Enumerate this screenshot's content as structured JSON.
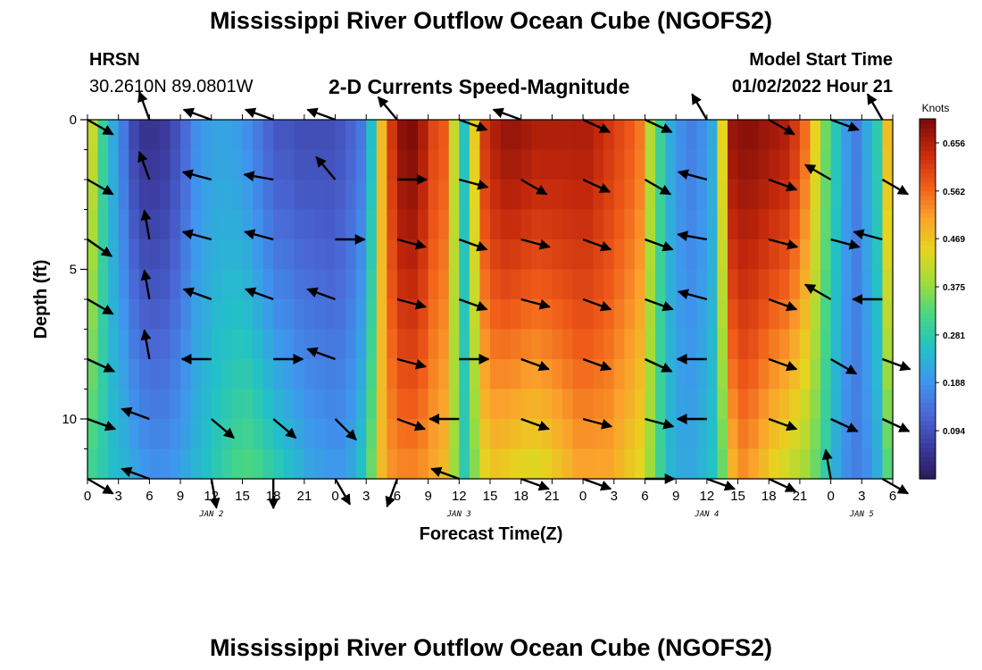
{
  "header": {
    "title": "Mississippi River Outflow Ocean Cube (NGOFS2)",
    "station_name": "HRSN",
    "station_coords": "30.2610N  89.0801W",
    "plot_subtitle": "2-D Currents Speed-Magnitude",
    "model_start_label": "Model Start Time",
    "model_start_value": "01/02/2022 Hour 21"
  },
  "footer": {
    "title_repeat": "Mississippi River Outflow Ocean Cube (NGOFS2)"
  },
  "colors": {
    "palette": [
      "#2a1a55",
      "#3b3b9f",
      "#4a68d6",
      "#3f96ee",
      "#22c1c7",
      "#47d684",
      "#9fdc3c",
      "#e6d51f",
      "#fba12c",
      "#ef5a19",
      "#c3280c",
      "#7a0a08"
    ]
  },
  "chart_data": {
    "type": "heatmap",
    "title": "2-D Currents Speed-Magnitude",
    "xlabel": "Forecast Time(Z)",
    "ylabel": "Depth (ft)",
    "xlim": [
      0,
      78
    ],
    "ylim": [
      12,
      0
    ],
    "x_ticks": [
      0,
      3,
      6,
      9,
      12,
      15,
      18,
      21,
      24,
      27,
      30,
      33,
      36,
      39,
      42,
      45,
      48,
      51,
      54,
      57,
      60,
      63,
      66,
      69,
      72,
      75,
      78
    ],
    "x_tick_labels": [
      "0",
      "3",
      "6",
      "9",
      "12",
      "15",
      "18",
      "21",
      "0",
      "3",
      "6",
      "9",
      "12",
      "15",
      "18",
      "21",
      "0",
      "3",
      "6",
      "9",
      "12",
      "15",
      "18",
      "21",
      "0",
      "3",
      "6"
    ],
    "date_labels": [
      {
        "x": 12,
        "text": "JAN 2"
      },
      {
        "x": 36,
        "text": "JAN 3"
      },
      {
        "x": 60,
        "text": "JAN 4"
      },
      {
        "x": 75,
        "text": "JAN 5"
      }
    ],
    "y_ticks": [
      0,
      5,
      10
    ],
    "y_tick_labels": [
      "0",
      "5",
      "10"
    ],
    "colorbar": {
      "label": "Knots",
      "min": 0.0,
      "max": 0.703,
      "tick_values": [
        0.094,
        0.188,
        0.281,
        0.375,
        0.469,
        0.562,
        0.656
      ],
      "tick_labels": [
        "0.094",
        "0.188",
        "0.281",
        "0.375",
        "0.469",
        "0.562",
        "0.656"
      ]
    },
    "speed_profile": {
      "times": [
        0,
        1,
        2,
        3,
        4,
        5,
        6,
        7,
        8,
        9,
        10,
        11,
        12,
        13,
        14,
        15,
        16,
        17,
        18,
        19,
        20,
        21,
        22,
        23,
        24,
        25,
        26,
        27,
        28,
        29,
        30,
        31,
        32,
        33,
        34,
        35,
        36,
        37,
        38,
        39,
        40,
        41,
        42,
        43,
        44,
        45,
        46,
        47,
        48,
        49,
        50,
        51,
        52,
        53,
        54,
        55,
        56,
        57,
        58,
        59,
        60,
        61,
        62,
        63,
        64,
        65,
        66,
        67,
        68,
        69,
        70,
        71,
        72,
        73,
        74,
        75,
        76,
        77,
        78
      ],
      "surface": [
        0.42,
        0.3,
        0.22,
        0.15,
        0.08,
        0.05,
        0.05,
        0.06,
        0.09,
        0.13,
        0.18,
        0.2,
        0.21,
        0.21,
        0.2,
        0.18,
        0.15,
        0.12,
        0.1,
        0.1,
        0.09,
        0.09,
        0.09,
        0.09,
        0.1,
        0.12,
        0.15,
        0.25,
        0.48,
        0.62,
        0.69,
        0.7,
        0.66,
        0.6,
        0.58,
        0.42,
        0.26,
        0.46,
        0.62,
        0.66,
        0.68,
        0.68,
        0.67,
        0.66,
        0.66,
        0.66,
        0.66,
        0.66,
        0.66,
        0.64,
        0.62,
        0.6,
        0.58,
        0.55,
        0.4,
        0.3,
        0.22,
        0.18,
        0.16,
        0.18,
        0.22,
        0.45,
        0.68,
        0.69,
        0.69,
        0.68,
        0.67,
        0.66,
        0.62,
        0.56,
        0.45,
        0.35,
        0.27,
        0.2,
        0.16,
        0.22,
        0.28,
        0.48,
        0.6
      ],
      "bottom": [
        0.3,
        0.28,
        0.25,
        0.24,
        0.22,
        0.2,
        0.19,
        0.19,
        0.2,
        0.22,
        0.24,
        0.26,
        0.28,
        0.3,
        0.32,
        0.33,
        0.32,
        0.3,
        0.28,
        0.26,
        0.24,
        0.22,
        0.21,
        0.2,
        0.2,
        0.22,
        0.26,
        0.35,
        0.48,
        0.52,
        0.53,
        0.53,
        0.52,
        0.5,
        0.48,
        0.38,
        0.28,
        0.36,
        0.44,
        0.46,
        0.45,
        0.44,
        0.43,
        0.43,
        0.44,
        0.46,
        0.48,
        0.5,
        0.5,
        0.5,
        0.5,
        0.48,
        0.46,
        0.44,
        0.38,
        0.3,
        0.24,
        0.22,
        0.22,
        0.24,
        0.26,
        0.34,
        0.48,
        0.52,
        0.5,
        0.47,
        0.44,
        0.42,
        0.4,
        0.38,
        0.34,
        0.28,
        0.22,
        0.18,
        0.16,
        0.18,
        0.22,
        0.32,
        0.4
      ]
    },
    "vector_rows_depth": [
      0.0,
      2.0,
      4.0,
      6.0,
      8.0,
      10.0,
      12.0
    ],
    "vector_cols_time": [
      0,
      6,
      12,
      18,
      24,
      30,
      36,
      42,
      48,
      54,
      60,
      66,
      72,
      77
    ],
    "vectors_deg": [
      [
        30,
        250,
        200,
        200,
        200,
        230,
        20,
        200,
        25,
        25,
        240,
        30,
        20,
        240
      ],
      [
        30,
        250,
        195,
        190,
        230,
        0,
        15,
        30,
        25,
        30,
        195,
        20,
        210,
        30
      ],
      [
        35,
        260,
        195,
        195,
        0,
        15,
        20,
        15,
        20,
        20,
        190,
        15,
        15,
        195
      ],
      [
        30,
        260,
        200,
        200,
        200,
        15,
        20,
        15,
        20,
        20,
        195,
        20,
        210,
        180
      ],
      [
        25,
        260,
        180,
        0,
        200,
        15,
        0,
        20,
        20,
        25,
        180,
        20,
        30,
        20
      ],
      [
        20,
        200,
        40,
        40,
        45,
        20,
        180,
        20,
        15,
        15,
        180,
        20,
        25,
        25
      ],
      [
        30,
        200,
        80,
        90,
        60,
        110,
        200,
        20,
        20,
        0,
        20,
        25,
        260,
        30
      ]
    ]
  }
}
